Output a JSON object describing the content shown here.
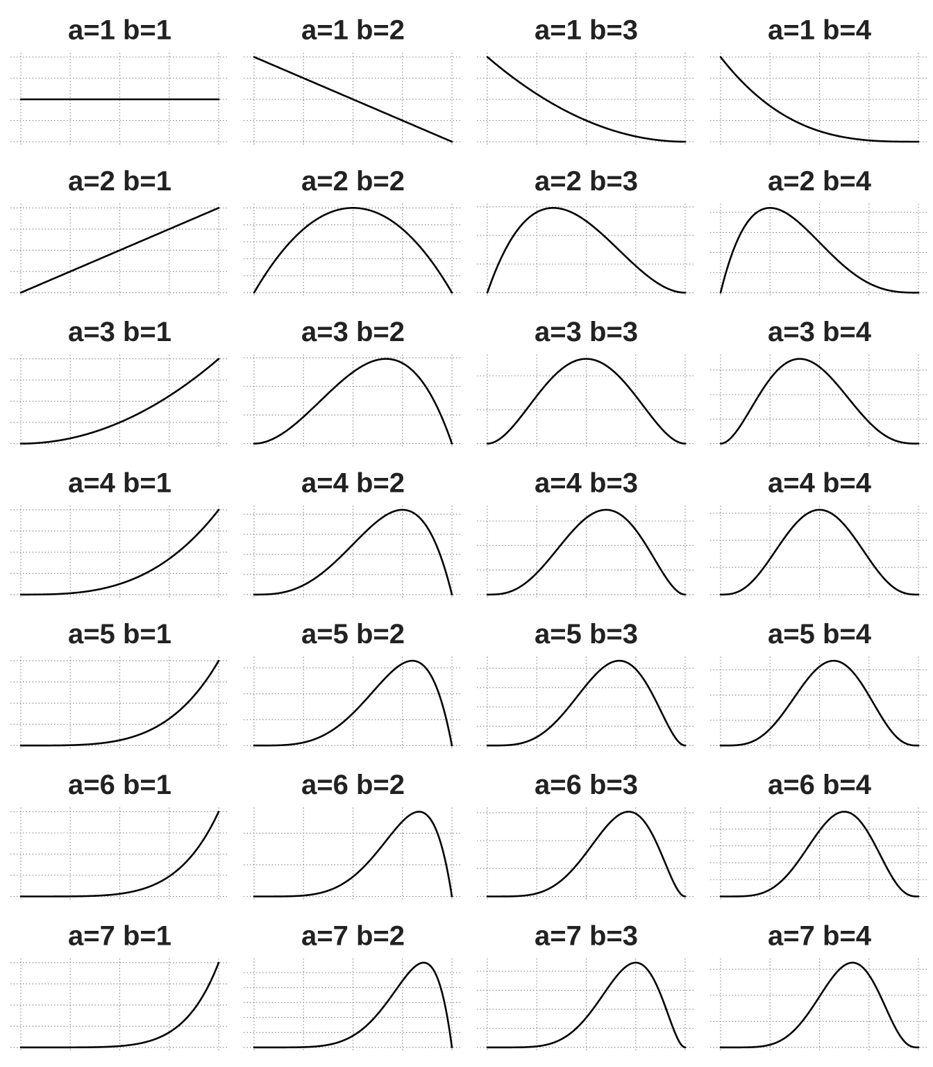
{
  "chart_data": {
    "type": "line",
    "function": "beta-pdf",
    "x_domain": [
      0,
      1
    ],
    "grid": true,
    "axes_visible": false,
    "line_color": "#000000",
    "grid_color": "#808080",
    "title_color": "#222222",
    "panels": [
      {
        "title": "a=1 b=1",
        "a": 1,
        "b": 1
      },
      {
        "title": "a=1 b=2",
        "a": 1,
        "b": 2
      },
      {
        "title": "a=1 b=3",
        "a": 1,
        "b": 3
      },
      {
        "title": "a=1 b=4",
        "a": 1,
        "b": 4
      },
      {
        "title": "a=2 b=1",
        "a": 2,
        "b": 1
      },
      {
        "title": "a=2 b=2",
        "a": 2,
        "b": 2
      },
      {
        "title": "a=2 b=3",
        "a": 2,
        "b": 3
      },
      {
        "title": "a=2 b=4",
        "a": 2,
        "b": 4
      },
      {
        "title": "a=3 b=1",
        "a": 3,
        "b": 1
      },
      {
        "title": "a=3 b=2",
        "a": 3,
        "b": 2
      },
      {
        "title": "a=3 b=3",
        "a": 3,
        "b": 3
      },
      {
        "title": "a=3 b=4",
        "a": 3,
        "b": 4
      },
      {
        "title": "a=4 b=1",
        "a": 4,
        "b": 1
      },
      {
        "title": "a=4 b=2",
        "a": 4,
        "b": 2
      },
      {
        "title": "a=4 b=3",
        "a": 4,
        "b": 3
      },
      {
        "title": "a=4 b=4",
        "a": 4,
        "b": 4
      },
      {
        "title": "a=5 b=1",
        "a": 5,
        "b": 1
      },
      {
        "title": "a=5 b=2",
        "a": 5,
        "b": 2
      },
      {
        "title": "a=5 b=3",
        "a": 5,
        "b": 3
      },
      {
        "title": "a=5 b=4",
        "a": 5,
        "b": 4
      },
      {
        "title": "a=6 b=1",
        "a": 6,
        "b": 1
      },
      {
        "title": "a=6 b=2",
        "a": 6,
        "b": 2
      },
      {
        "title": "a=6 b=3",
        "a": 6,
        "b": 3
      },
      {
        "title": "a=6 b=4",
        "a": 6,
        "b": 4
      },
      {
        "title": "a=7 b=1",
        "a": 7,
        "b": 1
      },
      {
        "title": "a=7 b=2",
        "a": 7,
        "b": 2
      },
      {
        "title": "a=7 b=3",
        "a": 7,
        "b": 3
      },
      {
        "title": "a=7 b=4",
        "a": 7,
        "b": 4
      }
    ]
  }
}
